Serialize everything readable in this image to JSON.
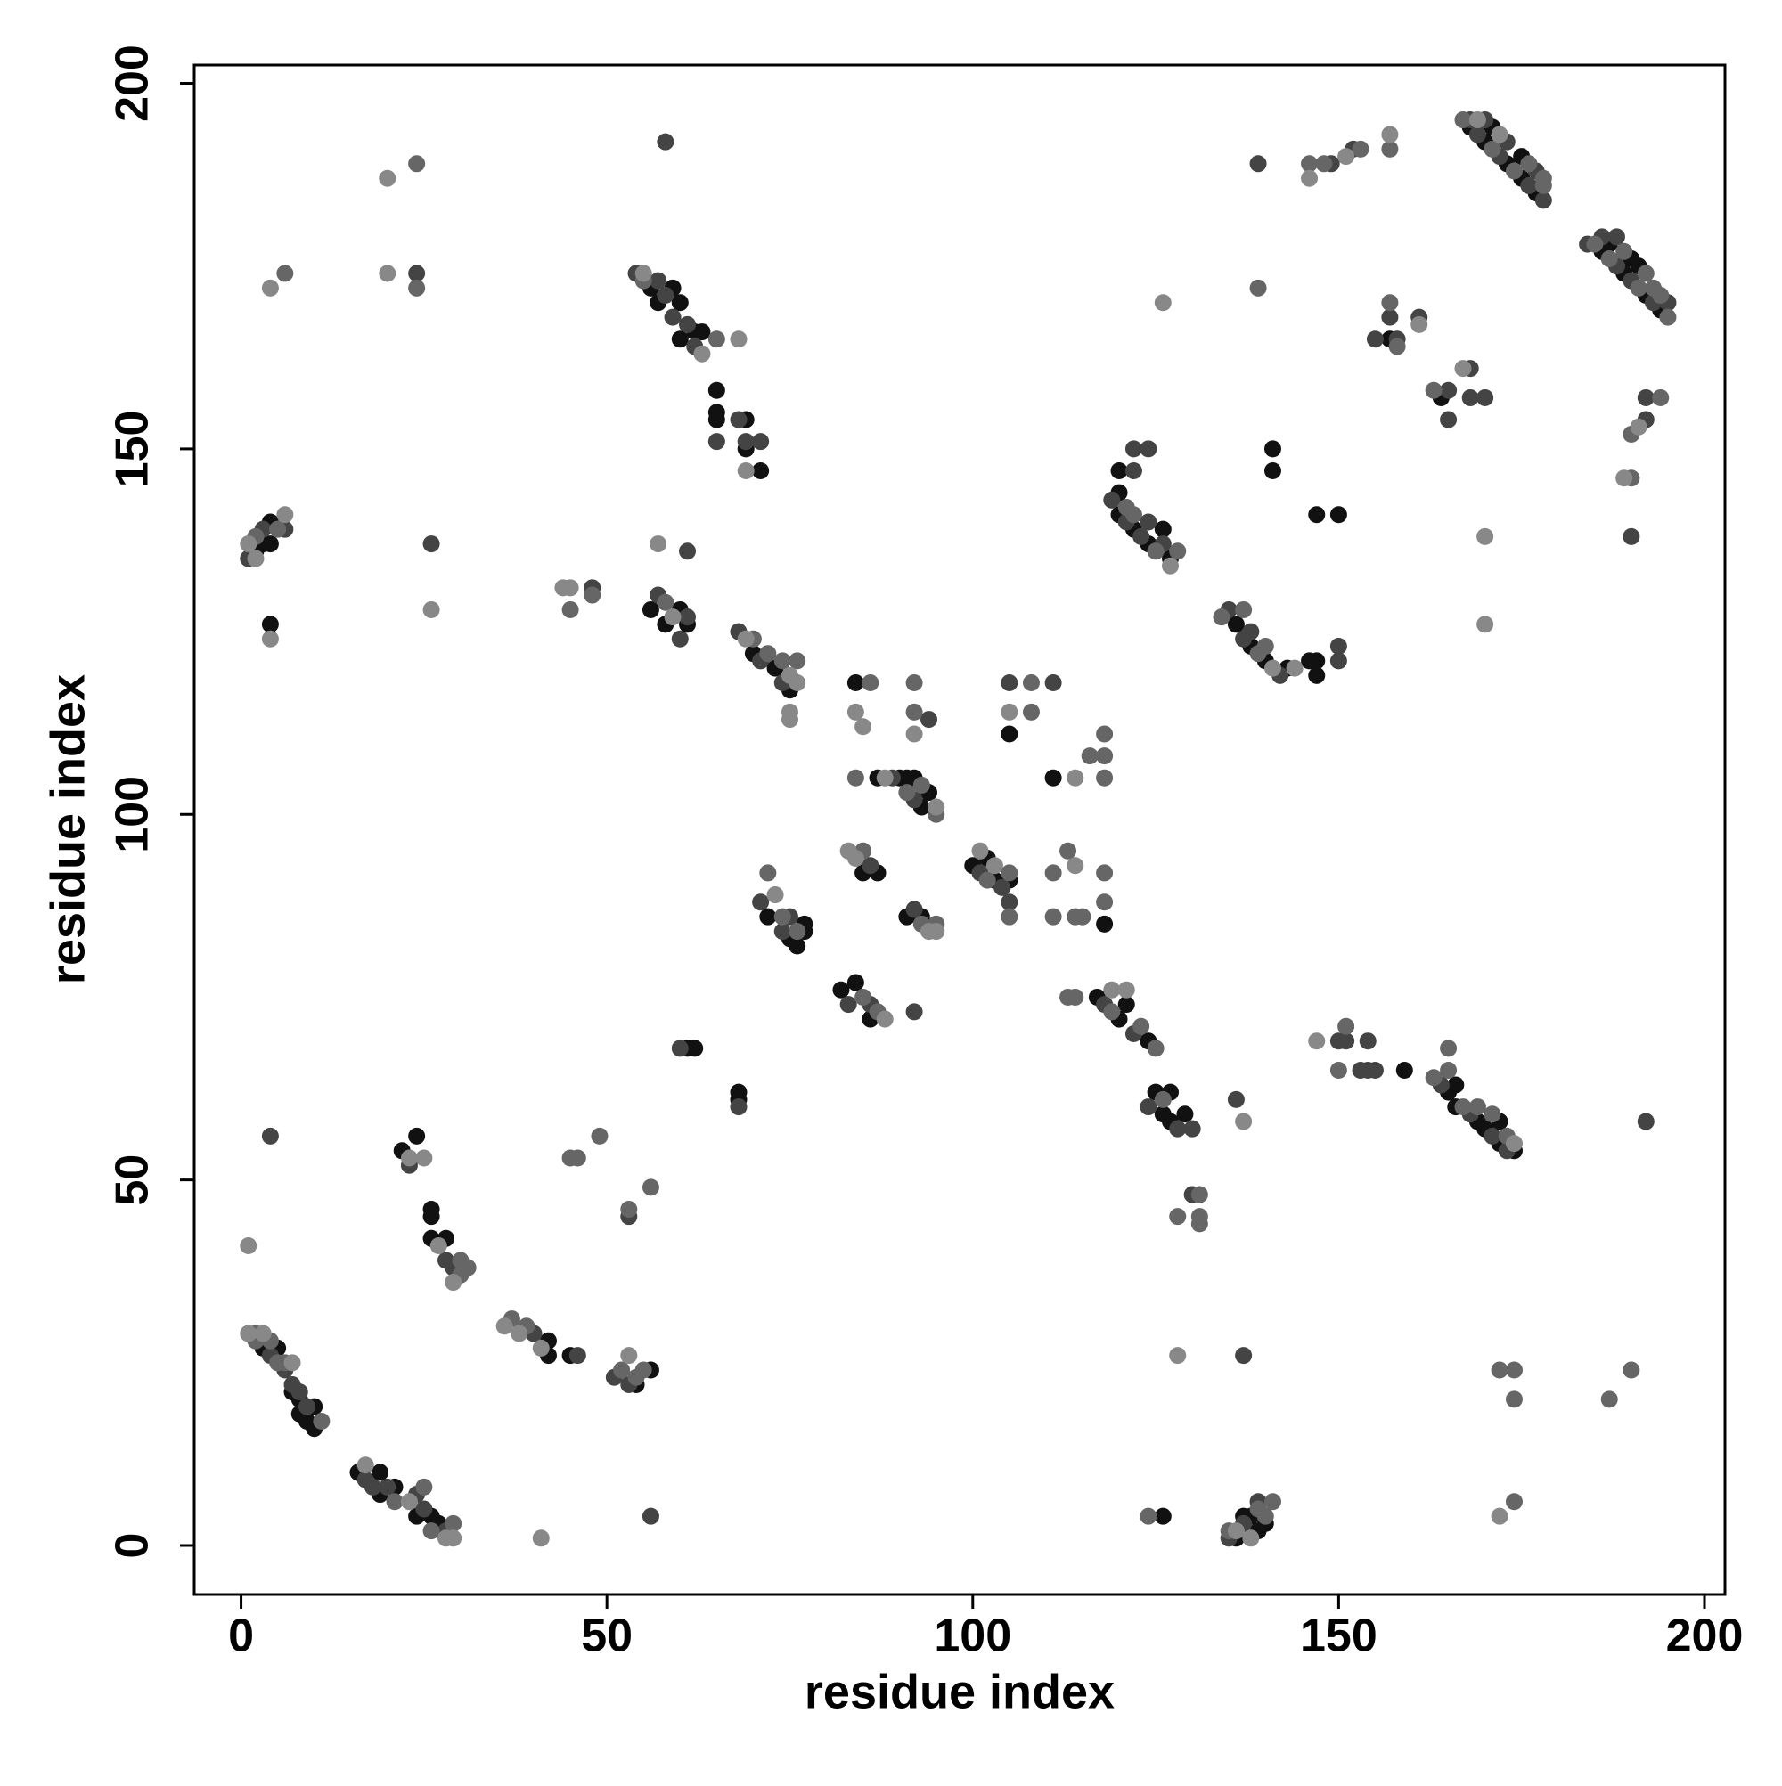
{
  "chart_data": {
    "type": "scatter",
    "xlabel": "residue index",
    "ylabel": "residue index",
    "xlim": [
      -6.4,
      202.8
    ],
    "ylim": [
      -6.7,
      202.5
    ],
    "xticks": [
      0,
      50,
      100,
      150,
      200
    ],
    "yticks": [
      0,
      50,
      100,
      150,
      200
    ],
    "series": [
      {
        "color": "#111111",
        "x": [
          3,
          5,
          7,
          8,
          8,
          9,
          10,
          10,
          16,
          19,
          19,
          21,
          24,
          26,
          27,
          22,
          24,
          26,
          26,
          26,
          28,
          42,
          42,
          45,
          54,
          56,
          4,
          2,
          3,
          4,
          4,
          56,
          57,
          59,
          60,
          60,
          62,
          63,
          65,
          65,
          65,
          69,
          69,
          71,
          56,
          58,
          60,
          61,
          70,
          73,
          75,
          72,
          75,
          76,
          77,
          77,
          61,
          62,
          68,
          68,
          82,
          84,
          86,
          85,
          87,
          84,
          87,
          90,
          91,
          93,
          94,
          92,
          91,
          93,
          100,
          102,
          103,
          105,
          105,
          111,
          118,
          117,
          120,
          121,
          124,
          125,
          126,
          127,
          127,
          129,
          126,
          120,
          120,
          122,
          124,
          126,
          127,
          120,
          136,
          138,
          140,
          143,
          146,
          147,
          147,
          141,
          141,
          147,
          150,
          157,
          164,
          168,
          170,
          171,
          173,
          175,
          175,
          177,
          186,
          187,
          189,
          190,
          191,
          192,
          194,
          165,
          166,
          166,
          169,
          170,
          172,
          172,
          174,
          159,
          136,
          137,
          138,
          139,
          140
        ],
        "y": [
          27,
          27,
          21,
          20,
          18,
          17,
          16,
          19,
          10,
          10,
          7,
          8,
          4,
          4,
          3,
          54,
          56,
          46,
          45,
          42,
          42,
          28,
          26,
          26,
          22,
          24,
          126,
          136,
          137,
          140,
          137,
          172,
          170,
          172,
          170,
          165,
          166,
          166,
          158,
          155,
          154,
          154,
          150,
          147,
          128,
          126,
          128,
          126,
          122,
          120,
          117,
          86,
          83,
          82,
          84,
          85,
          68,
          68,
          62,
          61,
          76,
          77,
          72,
          92,
          92,
          118,
          105,
          105,
          105,
          101,
          103,
          105,
          86,
          86,
          93,
          94,
          91,
          91,
          111,
          105,
          85,
          75,
          72,
          74,
          69,
          62,
          59,
          58,
          62,
          59,
          4,
          141,
          144,
          139,
          137,
          139,
          135,
          147,
          126,
          123,
          121,
          120,
          121,
          119,
          121,
          150,
          147,
          141,
          141,
          165,
          157,
          194,
          192,
          194,
          189,
          187,
          190,
          185,
          177,
          178,
          174,
          176,
          175,
          171,
          169,
          62,
          60,
          63,
          58,
          57,
          55,
          58,
          54,
          65,
          1,
          4,
          4,
          2,
          3
        ]
      },
      {
        "color": "#444444",
        "x": [
          4,
          6,
          7,
          8,
          9,
          17,
          18,
          20,
          24,
          25,
          28,
          23,
          28,
          29,
          40,
          46,
          51,
          53,
          4,
          56,
          53,
          24,
          58,
          26,
          1,
          3,
          6,
          54,
          57,
          58,
          59,
          61,
          62,
          65,
          68,
          69,
          71,
          61,
          48,
          57,
          60,
          61,
          68,
          71,
          74,
          71,
          74,
          75,
          60,
          68,
          83,
          86,
          92,
          86,
          94,
          89,
          92,
          92,
          101,
          104,
          105,
          105,
          111,
          118,
          122,
          124,
          128,
          130,
          130,
          119,
          121,
          123,
          124,
          126,
          122,
          122,
          124,
          135,
          137,
          138,
          142,
          150,
          150,
          139,
          149,
          152,
          155,
          157,
          158,
          161,
          165,
          165,
          168,
          168,
          170,
          168,
          169,
          170,
          172,
          173,
          176,
          177,
          178,
          184,
          186,
          188,
          188,
          190,
          193,
          195,
          192,
          192,
          190,
          164,
          168,
          171,
          173,
          150,
          151,
          153,
          154,
          154,
          155,
          136,
          137,
          192,
          135,
          137,
          139
        ],
        "y": [
          26,
          24,
          22,
          21,
          19,
          9,
          8,
          8,
          7,
          5,
          2,
          52,
          39,
          38,
          29,
          26,
          23,
          22,
          56,
          4,
          45,
          174,
          192,
          137,
          135,
          139,
          139,
          174,
          173,
          171,
          168,
          167,
          164,
          151,
          154,
          151,
          151,
          136,
          131,
          130,
          124,
          127,
          125,
          121,
          118,
          88,
          84,
          86,
          68,
          60,
          74,
          74,
          73,
          93,
          113,
          105,
          102,
          87,
          92,
          90,
          88,
          118,
          118,
          74,
          70,
          60,
          57,
          57,
          48,
          143,
          140,
          138,
          140,
          137,
          147,
          150,
          150,
          128,
          124,
          125,
          119,
          121,
          123,
          189,
          189,
          191,
          165,
          168,
          165,
          168,
          158,
          154,
          161,
          157,
          157,
          195,
          193,
          195,
          190,
          192,
          186,
          188,
          184,
          178,
          179,
          175,
          179,
          173,
          170,
          170,
          157,
          154,
          138,
          63,
          59,
          56,
          54,
          69,
          69,
          65,
          69,
          65,
          65,
          61,
          26,
          58,
          1,
          3,
          6
        ]
      },
      {
        "color": "#666666",
        "x": [
          2,
          2,
          4,
          5,
          6,
          11,
          21,
          25,
          26,
          29,
          30,
          31,
          30,
          37,
          39,
          52,
          54,
          55,
          45,
          46,
          49,
          53,
          56,
          6,
          24,
          24,
          2,
          5,
          55,
          65,
          45,
          48,
          58,
          70,
          72,
          74,
          76,
          72,
          74,
          76,
          85,
          87,
          85,
          86,
          92,
          92,
          84,
          91,
          93,
          95,
          93,
          95,
          102,
          105,
          105,
          108,
          108,
          111,
          111,
          113,
          114,
          115,
          113,
          114,
          118,
          118,
          118,
          118,
          118,
          116,
          119,
          123,
          125,
          126,
          131,
          131,
          131,
          128,
          124,
          121,
          122,
          125,
          128,
          134,
          137,
          139,
          140,
          139,
          146,
          148,
          153,
          157,
          157,
          158,
          163,
          167,
          171,
          174,
          176,
          178,
          178,
          185,
          187,
          189,
          191,
          192,
          193,
          194,
          195,
          190,
          190,
          194,
          163,
          165,
          165,
          167,
          169,
          171,
          173,
          150,
          151,
          172,
          174,
          174,
          187,
          190,
          174,
          135,
          139,
          140,
          141
        ],
        "y": [
          28,
          29,
          28,
          25,
          25,
          17,
          6,
          8,
          2,
          3,
          37,
          38,
          39,
          31,
          30,
          24,
          23,
          24,
          53,
          53,
          56,
          46,
          49,
          174,
          189,
          172,
          138,
          139,
          173,
          165,
          128,
          130,
          129,
          124,
          122,
          121,
          121,
          92,
          86,
          84,
          75,
          73,
          95,
          118,
          118,
          114,
          105,
          103,
          104,
          100,
          85,
          85,
          91,
          86,
          92,
          118,
          114,
          92,
          86,
          95,
          86,
          86,
          75,
          75,
          111,
          108,
          105,
          92,
          88,
          108,
          73,
          71,
          68,
          61,
          48,
          45,
          44,
          45,
          4,
          142,
          141,
          136,
          136,
          127,
          128,
          122,
          123,
          172,
          189,
          189,
          191,
          191,
          170,
          164,
          158,
          195,
          191,
          188,
          189,
          187,
          186,
          178,
          176,
          177,
          172,
          174,
          172,
          171,
          168,
          146,
          152,
          157,
          64,
          68,
          65,
          60,
          60,
          59,
          56,
          65,
          71,
          24,
          24,
          20,
          20,
          24,
          6,
          2,
          5,
          4,
          6
        ]
      },
      {
        "color": "#888888",
        "x": [
          1,
          3,
          7,
          17,
          23,
          28,
          29,
          23,
          25,
          27,
          29,
          36,
          38,
          41,
          53,
          1,
          41,
          4,
          20,
          20,
          26,
          4,
          1,
          6,
          2,
          55,
          63,
          68,
          69,
          57,
          44,
          45,
          59,
          69,
          75,
          76,
          75,
          75,
          73,
          88,
          83,
          84,
          85,
          84,
          92,
          88,
          95,
          94,
          95,
          101,
          103,
          105,
          114,
          114,
          119,
          121,
          128,
          127,
          141,
          144,
          146,
          151,
          157,
          126,
          161,
          167,
          169,
          172,
          189,
          191,
          170,
          170,
          174,
          147,
          137,
          172,
          136,
          138
        ],
        "y": [
          29,
          29,
          25,
          11,
          6,
          1,
          1,
          53,
          53,
          41,
          36,
          30,
          29,
          27,
          26,
          41,
          1,
          172,
          187,
          174,
          128,
          124,
          137,
          141,
          135,
          174,
          163,
          165,
          147,
          137,
          131,
          131,
          127,
          124,
          119,
          118,
          114,
          113,
          89,
          72,
          95,
          94,
          112,
          114,
          111,
          105,
          101,
          84,
          84,
          95,
          93,
          114,
          105,
          93,
          76,
          76,
          26,
          134,
          120,
          120,
          187,
          190,
          193,
          170,
          167,
          161,
          195,
          193,
          146,
          153,
          138,
          126,
          55,
          69,
          58,
          4,
          2,
          1
        ]
      }
    ]
  }
}
